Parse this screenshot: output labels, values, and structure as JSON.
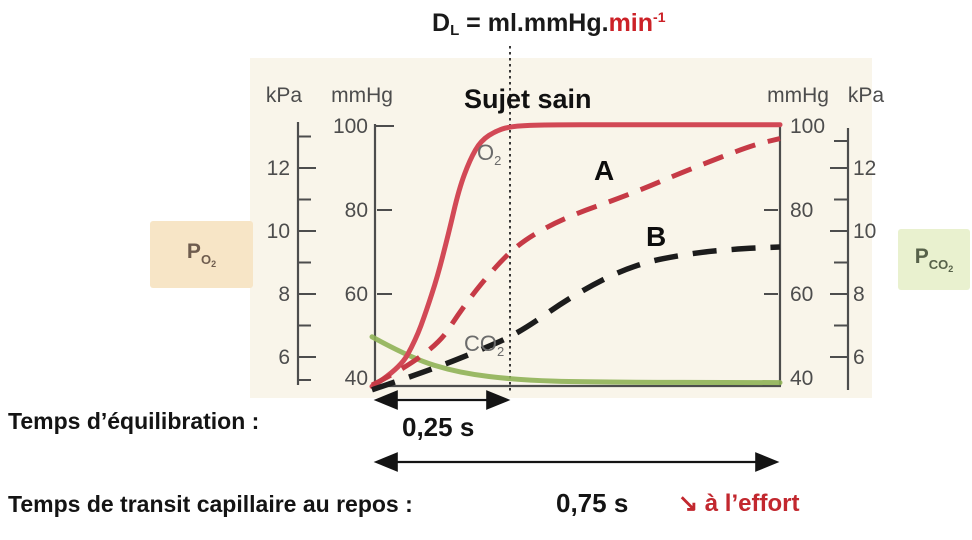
{
  "title": {
    "base": "D",
    "base_sub": "L",
    "middle": " = ml.mmHg.",
    "unit": "min",
    "unit_sup": "-1"
  },
  "subtitle": "Sujet sain",
  "axes": {
    "left_kpa": {
      "unit": "kPa",
      "labels": [
        "12",
        "10",
        "8",
        "6"
      ]
    },
    "left_mmhg": {
      "unit": "mmHg",
      "labels": [
        "100",
        "80",
        "60",
        "40"
      ]
    },
    "right_mmhg": {
      "unit": "mmHg",
      "labels": [
        "100",
        "80",
        "60",
        "40"
      ]
    },
    "right_kpa": {
      "unit": "kPa",
      "labels": [
        "12",
        "10",
        "8",
        "6"
      ]
    }
  },
  "curve_labels": {
    "o2": {
      "base": "O",
      "sub": "2"
    },
    "co2": {
      "base": "CO",
      "sub": "2"
    },
    "a": "A",
    "b": "B"
  },
  "side_boxes": {
    "left": {
      "base": "P",
      "sub": "O",
      "subsub": "2"
    },
    "right": {
      "base": "P",
      "sub": "CO",
      "subsub": "2"
    }
  },
  "annotations": {
    "equilibration": {
      "label": "Temps d’équilibration :",
      "value": "0,25 s"
    },
    "transit": {
      "label": "Temps de transit capillaire au repos :",
      "value": "0,75 s",
      "effort": "↘ à l’effort"
    }
  },
  "colors": {
    "red_accent": "#cc2127",
    "effort_red": "#c2272e",
    "o2_curve": "#d24956",
    "a_curve": "#c63a46",
    "b_curve": "#1c1c1c",
    "co2_curve": "#8fb356",
    "po2_box_bg": "#f7e5c6",
    "pco2_box_bg": "#e9f1cf"
  },
  "chart_data": {
    "type": "line",
    "title": "DL = ml.mmHg.min-1",
    "subtitle": "Sujet sain",
    "x_unit": "s",
    "xlim": [
      0,
      0.75
    ],
    "y_unit": "mmHg",
    "y_ticks_mmHg": [
      40,
      60,
      80,
      100
    ],
    "y_ticks_kPa": [
      6,
      8,
      10,
      12
    ],
    "grid": false,
    "legend_position": "labels-on-curves",
    "vline_x": 0.25,
    "annotations": [
      {
        "text": "Temps d’équilibration :",
        "value_s": 0.25
      },
      {
        "text": "Temps de transit capillaire au repos :",
        "value_s": 0.75
      },
      {
        "text": "↘ à l’effort"
      }
    ],
    "series": [
      {
        "id": "o2",
        "name": "O2",
        "style": "solid",
        "color": "#d24956",
        "x": [
          0,
          0.05,
          0.08,
          0.1,
          0.12,
          0.14,
          0.16,
          0.18,
          0.2,
          0.23,
          0.26,
          0.32,
          0.45,
          0.75
        ],
        "y": [
          38,
          42,
          49,
          56,
          64,
          74,
          85,
          92,
          96.5,
          99,
          100,
          100.3,
          100.3,
          100.3
        ]
      },
      {
        "id": "a",
        "name": "A",
        "style": "dashed",
        "color": "#c63a46",
        "x": [
          0,
          0.11,
          0.17,
          0.23,
          0.28,
          0.36,
          0.47,
          0.58,
          0.7,
          0.75
        ],
        "y": [
          38.3,
          45.5,
          57.5,
          67,
          73,
          78.5,
          83.5,
          89.5,
          95.5,
          97
        ]
      },
      {
        "id": "b",
        "name": "B",
        "style": "dashed",
        "color": "#1c1c1c",
        "x": [
          0,
          0.11,
          0.2,
          0.27,
          0.37,
          0.48,
          0.59,
          0.68,
          0.75
        ],
        "y": [
          37.2,
          42,
          46.7,
          50.7,
          59.8,
          67,
          69.8,
          70.8,
          71.2
        ]
      },
      {
        "id": "co2",
        "name": "CO2",
        "style": "solid",
        "color": "#8fb356",
        "x": [
          0,
          0.07,
          0.16,
          0.27,
          0.4,
          0.75
        ],
        "y": [
          49.8,
          44.8,
          41.2,
          39.5,
          39,
          38.9
        ]
      }
    ]
  }
}
